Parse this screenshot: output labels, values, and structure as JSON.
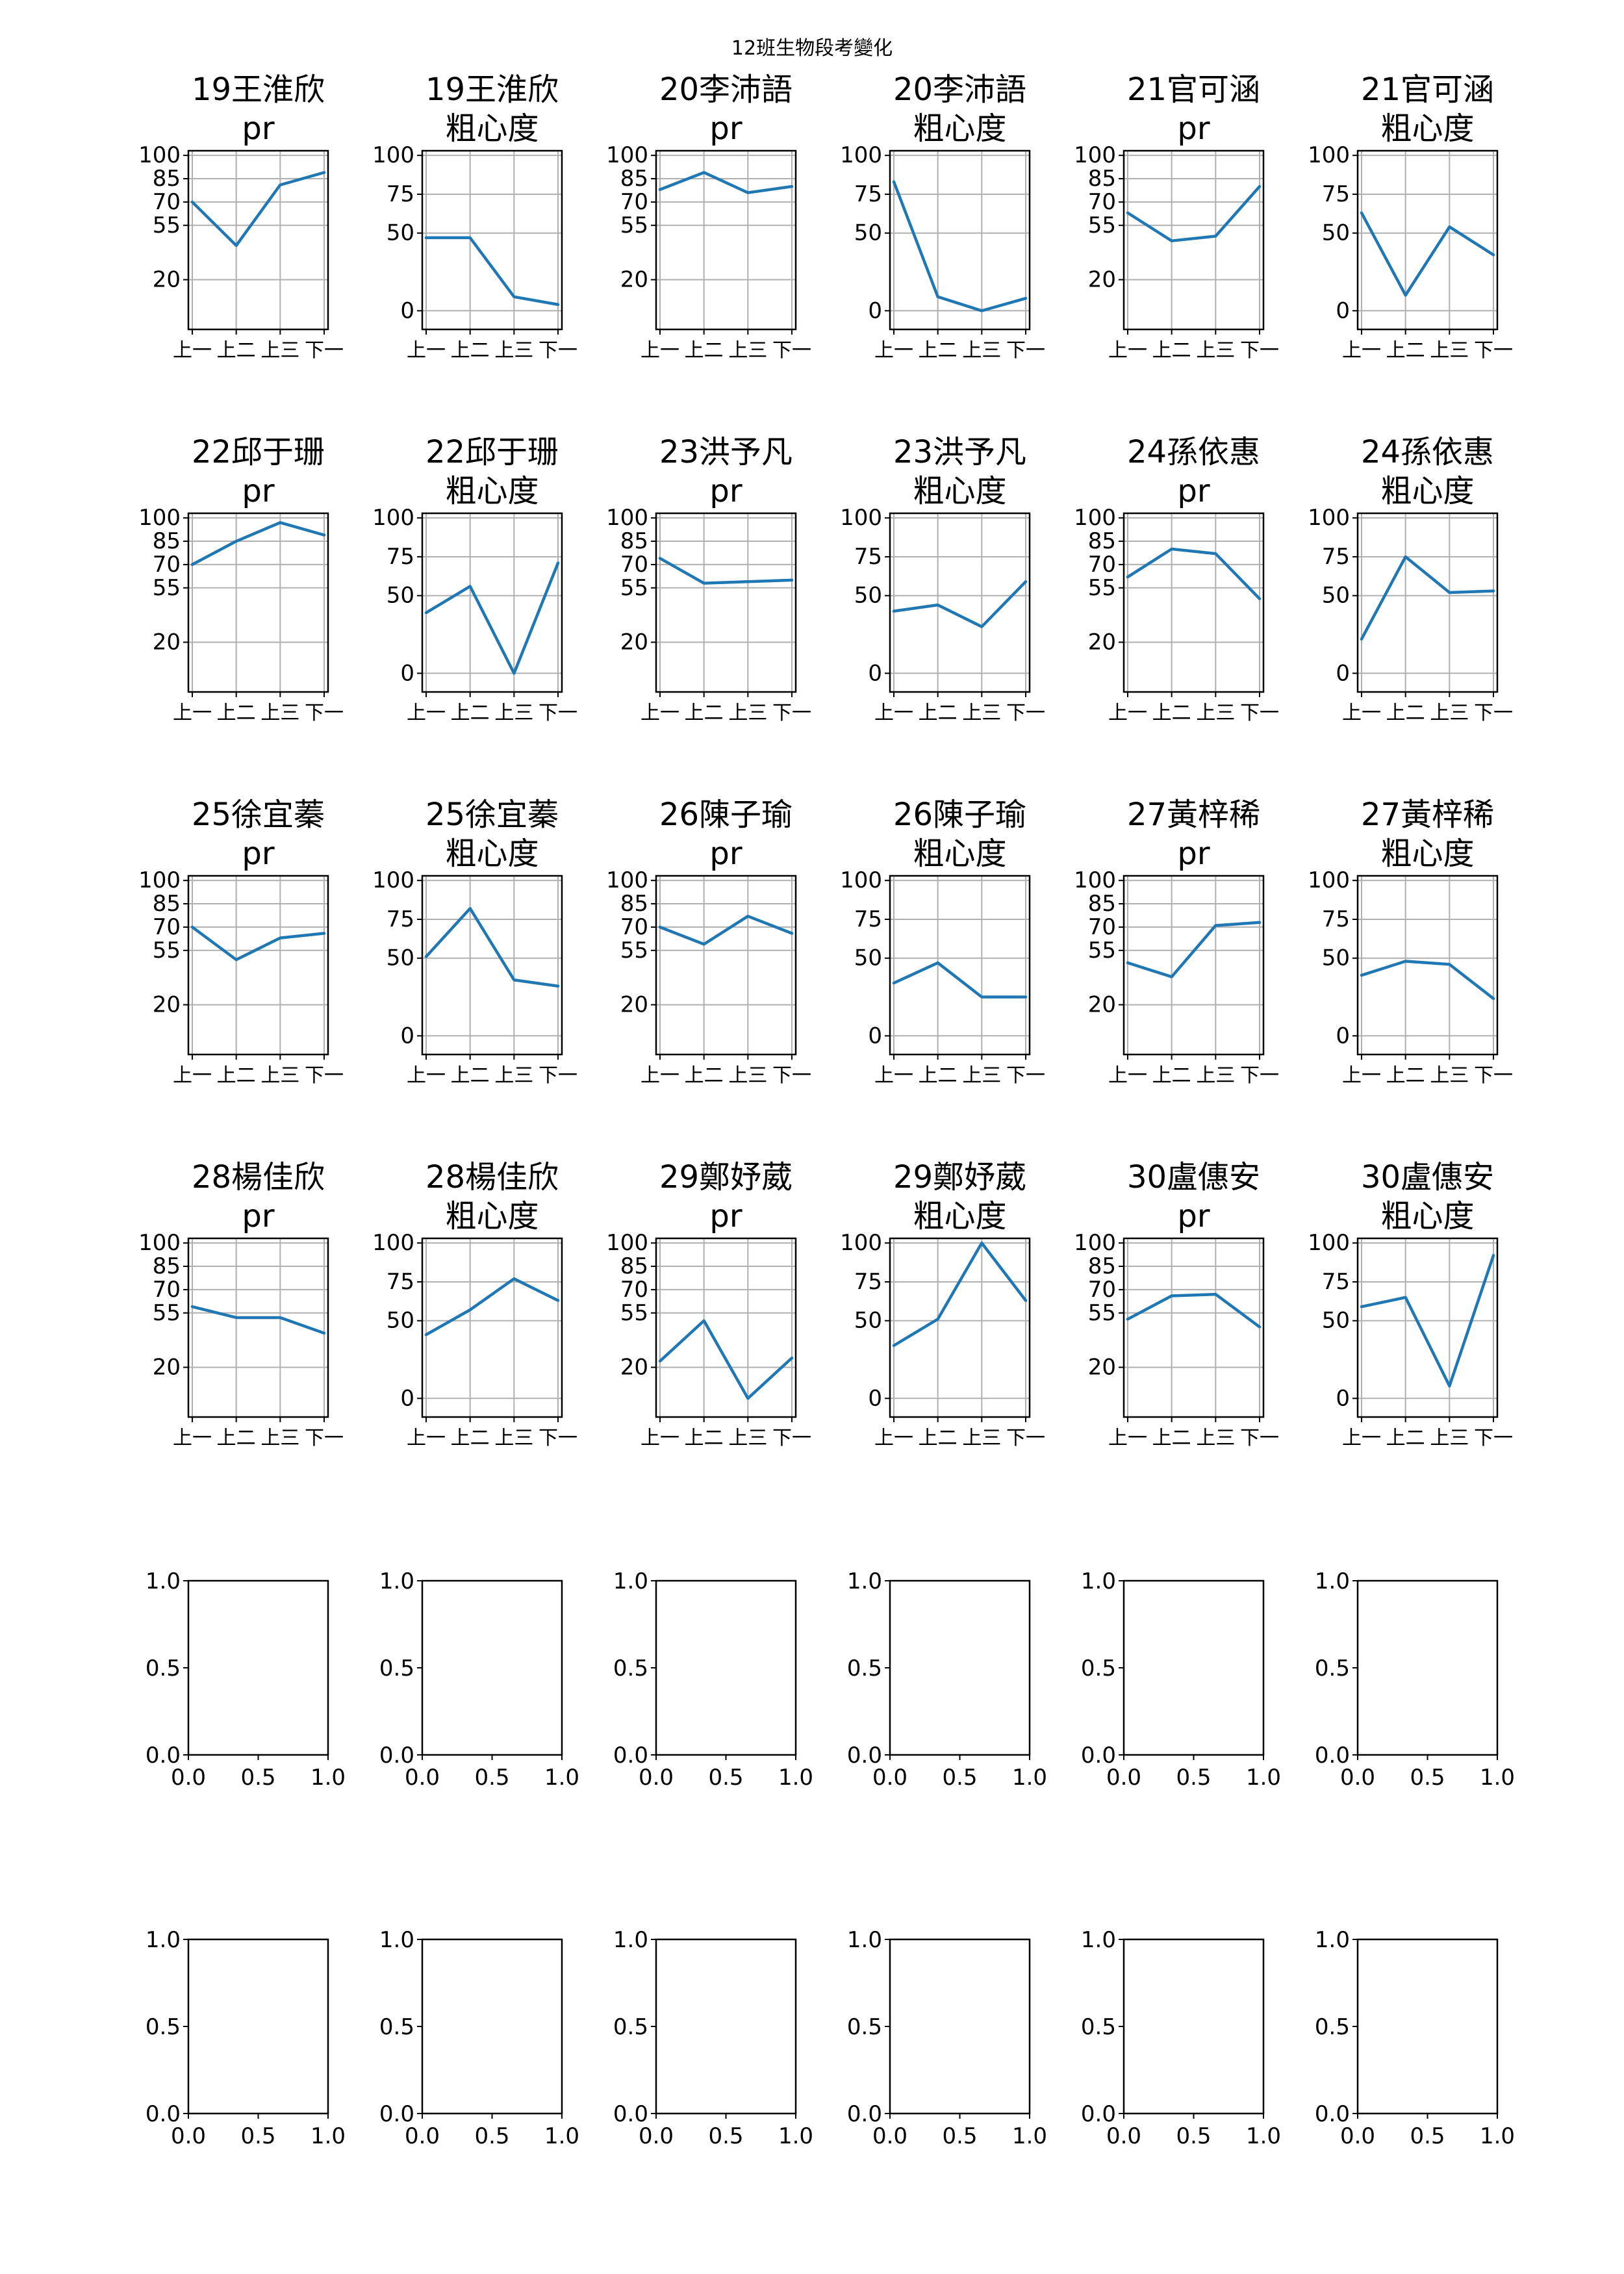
{
  "figure_title": "12班生物段考變化",
  "chart_data": [
    {
      "type": "line",
      "title": "19王淮欣\npr",
      "categories": [
        "上一",
        "上二",
        "上三",
        "下一"
      ],
      "values": [
        70,
        42,
        81,
        89
      ],
      "ylim": [
        0,
        100
      ],
      "yticks": [
        20,
        55,
        70,
        85,
        100
      ],
      "grid": true
    },
    {
      "type": "line",
      "title": "19王淮欣\n粗心度",
      "categories": [
        "上一",
        "上二",
        "上三",
        "下一"
      ],
      "values": [
        47,
        47,
        9,
        4
      ],
      "ylim": [
        0,
        100
      ],
      "yticks": [
        0,
        50,
        75,
        100
      ],
      "grid": true
    },
    {
      "type": "line",
      "title": "20李沛語\npr",
      "categories": [
        "上一",
        "上二",
        "上三",
        "下一"
      ],
      "values": [
        78,
        89,
        76,
        80
      ],
      "ylim": [
        0,
        100
      ],
      "yticks": [
        20,
        55,
        70,
        85,
        100
      ],
      "grid": true
    },
    {
      "type": "line",
      "title": "20李沛語\n粗心度",
      "categories": [
        "上一",
        "上二",
        "上三",
        "下一"
      ],
      "values": [
        83,
        9,
        0,
        8
      ],
      "ylim": [
        0,
        100
      ],
      "yticks": [
        0,
        50,
        75,
        100
      ],
      "grid": true
    },
    {
      "type": "line",
      "title": "21官可涵\npr",
      "categories": [
        "上一",
        "上二",
        "上三",
        "下一"
      ],
      "values": [
        63,
        45,
        48,
        80
      ],
      "ylim": [
        0,
        100
      ],
      "yticks": [
        20,
        55,
        70,
        85,
        100
      ],
      "grid": true
    },
    {
      "type": "line",
      "title": "21官可涵\n粗心度",
      "categories": [
        "上一",
        "上二",
        "上三",
        "下一"
      ],
      "values": [
        63,
        10,
        54,
        36
      ],
      "ylim": [
        0,
        100
      ],
      "yticks": [
        0,
        50,
        75,
        100
      ],
      "grid": true
    },
    {
      "type": "line",
      "title": "22邱于珊\npr",
      "categories": [
        "上一",
        "上二",
        "上三",
        "下一"
      ],
      "values": [
        70,
        85,
        97,
        89
      ],
      "ylim": [
        0,
        100
      ],
      "yticks": [
        20,
        55,
        70,
        85,
        100
      ],
      "grid": true
    },
    {
      "type": "line",
      "title": "22邱于珊\n粗心度",
      "categories": [
        "上一",
        "上二",
        "上三",
        "下一"
      ],
      "values": [
        39,
        56,
        0,
        71
      ],
      "ylim": [
        0,
        100
      ],
      "yticks": [
        0,
        50,
        75,
        100
      ],
      "grid": true
    },
    {
      "type": "line",
      "title": "23洪予凡\npr",
      "categories": [
        "上一",
        "上二",
        "上三",
        "下一"
      ],
      "values": [
        74,
        58,
        59,
        60
      ],
      "ylim": [
        0,
        100
      ],
      "yticks": [
        20,
        55,
        70,
        85,
        100
      ],
      "grid": true
    },
    {
      "type": "line",
      "title": "23洪予凡\n粗心度",
      "categories": [
        "上一",
        "上二",
        "上三",
        "下一"
      ],
      "values": [
        40,
        44,
        30,
        59
      ],
      "ylim": [
        0,
        100
      ],
      "yticks": [
        0,
        50,
        75,
        100
      ],
      "grid": true
    },
    {
      "type": "line",
      "title": "24孫依惠\npr",
      "categories": [
        "上一",
        "上二",
        "上三",
        "下一"
      ],
      "values": [
        62,
        80,
        77,
        48
      ],
      "ylim": [
        0,
        100
      ],
      "yticks": [
        20,
        55,
        70,
        85,
        100
      ],
      "grid": true
    },
    {
      "type": "line",
      "title": "24孫依惠\n粗心度",
      "categories": [
        "上一",
        "上二",
        "上三",
        "下一"
      ],
      "values": [
        22,
        75,
        52,
        53
      ],
      "ylim": [
        0,
        100
      ],
      "yticks": [
        0,
        50,
        75,
        100
      ],
      "grid": true
    },
    {
      "type": "line",
      "title": "25徐宜蓁\npr",
      "categories": [
        "上一",
        "上二",
        "上三",
        "下一"
      ],
      "values": [
        70,
        49,
        63,
        66
      ],
      "ylim": [
        0,
        100
      ],
      "yticks": [
        20,
        55,
        70,
        85,
        100
      ],
      "grid": true
    },
    {
      "type": "line",
      "title": "25徐宜蓁\n粗心度",
      "categories": [
        "上一",
        "上二",
        "上三",
        "下一"
      ],
      "values": [
        51,
        82,
        36,
        32
      ],
      "ylim": [
        0,
        100
      ],
      "yticks": [
        0,
        50,
        75,
        100
      ],
      "grid": true
    },
    {
      "type": "line",
      "title": "26陳子瑜\npr",
      "categories": [
        "上一",
        "上二",
        "上三",
        "下一"
      ],
      "values": [
        70,
        59,
        77,
        66
      ],
      "ylim": [
        0,
        100
      ],
      "yticks": [
        20,
        55,
        70,
        85,
        100
      ],
      "grid": true
    },
    {
      "type": "line",
      "title": "26陳子瑜\n粗心度",
      "categories": [
        "上一",
        "上二",
        "上三",
        "下一"
      ],
      "values": [
        34,
        47,
        25,
        25
      ],
      "ylim": [
        0,
        100
      ],
      "yticks": [
        0,
        50,
        75,
        100
      ],
      "grid": true
    },
    {
      "type": "line",
      "title": "27黃梓稀\npr",
      "categories": [
        "上一",
        "上二",
        "上三",
        "下一"
      ],
      "values": [
        47,
        38,
        71,
        73
      ],
      "ylim": [
        0,
        100
      ],
      "yticks": [
        20,
        55,
        70,
        85,
        100
      ],
      "grid": true
    },
    {
      "type": "line",
      "title": "27黃梓稀\n粗心度",
      "categories": [
        "上一",
        "上二",
        "上三",
        "下一"
      ],
      "values": [
        39,
        48,
        46,
        24
      ],
      "ylim": [
        0,
        100
      ],
      "yticks": [
        0,
        50,
        75,
        100
      ],
      "grid": true
    },
    {
      "type": "line",
      "title": "28楊佳欣\npr",
      "categories": [
        "上一",
        "上二",
        "上三",
        "下一"
      ],
      "values": [
        59,
        52,
        52,
        42
      ],
      "ylim": [
        0,
        100
      ],
      "yticks": [
        20,
        55,
        70,
        85,
        100
      ],
      "grid": true
    },
    {
      "type": "line",
      "title": "28楊佳欣\n粗心度",
      "categories": [
        "上一",
        "上二",
        "上三",
        "下一"
      ],
      "values": [
        41,
        57,
        77,
        63
      ],
      "ylim": [
        0,
        100
      ],
      "yticks": [
        0,
        50,
        75,
        100
      ],
      "grid": true
    },
    {
      "type": "line",
      "title": "29鄭妤葳\npr",
      "categories": [
        "上一",
        "上二",
        "上三",
        "下一"
      ],
      "values": [
        24,
        50,
        0,
        26
      ],
      "ylim": [
        0,
        100
      ],
      "yticks": [
        20,
        55,
        70,
        85,
        100
      ],
      "grid": true
    },
    {
      "type": "line",
      "title": "29鄭妤葳\n粗心度",
      "categories": [
        "上一",
        "上二",
        "上三",
        "下一"
      ],
      "values": [
        34,
        51,
        100,
        63
      ],
      "ylim": [
        0,
        100
      ],
      "yticks": [
        0,
        50,
        75,
        100
      ],
      "grid": true
    },
    {
      "type": "line",
      "title": "30盧僡安\npr",
      "categories": [
        "上一",
        "上二",
        "上三",
        "下一"
      ],
      "values": [
        51,
        66,
        67,
        46
      ],
      "ylim": [
        0,
        100
      ],
      "yticks": [
        20,
        55,
        70,
        85,
        100
      ],
      "grid": true
    },
    {
      "type": "line",
      "title": "30盧僡安\n粗心度",
      "categories": [
        "上一",
        "上二",
        "上三",
        "下一"
      ],
      "values": [
        59,
        65,
        8,
        92
      ],
      "ylim": [
        0,
        100
      ],
      "yticks": [
        0,
        50,
        75,
        100
      ],
      "grid": true
    }
  ],
  "empty_axes": {
    "count": 12,
    "xticks": [
      "0.0",
      "0.5",
      "1.0"
    ],
    "yticks": [
      "0.0",
      "0.5",
      "1.0"
    ]
  },
  "colors": {
    "series": "#1f77b4",
    "grid": "#b0b0b0",
    "frame": "#000000"
  }
}
